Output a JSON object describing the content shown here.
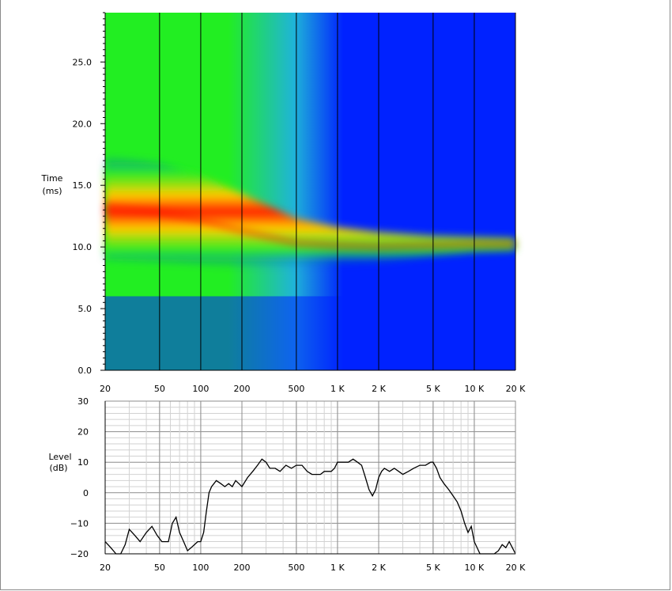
{
  "chart_data": [
    {
      "type": "heatmap",
      "title": "",
      "ylabel_line1": "Time",
      "ylabel_line2": "(ms)",
      "x_scale": "log",
      "x_ticks": [
        {
          "v": 20,
          "label": "20"
        },
        {
          "v": 50,
          "label": "50"
        },
        {
          "v": 100,
          "label": "100"
        },
        {
          "v": 200,
          "label": "200"
        },
        {
          "v": 500,
          "label": "500"
        },
        {
          "v": 1000,
          "label": "1 K"
        },
        {
          "v": 2000,
          "label": "2 K"
        },
        {
          "v": 5000,
          "label": "5 K"
        },
        {
          "v": 10000,
          "label": "10 K"
        },
        {
          "v": 20000,
          "label": "20 K"
        }
      ],
      "y_ticks": [
        {
          "v": 0,
          "label": "0.0"
        },
        {
          "v": 5,
          "label": "5.0"
        },
        {
          "v": 10,
          "label": "10.0"
        },
        {
          "v": 15,
          "label": "15.0"
        },
        {
          "v": 20,
          "label": "20.0"
        },
        {
          "v": 25,
          "label": "25.0"
        }
      ],
      "xlim": [
        20,
        20000
      ],
      "ylim": [
        0,
        29
      ],
      "energy_peak_ridge": {
        "x": [
          20,
          50,
          100,
          200,
          500,
          1000,
          2000,
          5000,
          10000,
          20000
        ],
        "y": [
          13.2,
          12.8,
          12.2,
          11.3,
          10.3,
          10.1,
          10.0,
          10.1,
          10.2,
          10.2
        ]
      },
      "colors": {
        "high": "#ff1400",
        "mid": "#22ee22",
        "low": "#0022ff"
      }
    },
    {
      "type": "line",
      "title": "",
      "ylabel_line1": "Level",
      "ylabel_line2": "(dB)",
      "x_scale": "log",
      "x_ticks": [
        {
          "v": 20,
          "label": "20"
        },
        {
          "v": 50,
          "label": "50"
        },
        {
          "v": 100,
          "label": "100"
        },
        {
          "v": 200,
          "label": "200"
        },
        {
          "v": 500,
          "label": "500"
        },
        {
          "v": 1000,
          "label": "1 K"
        },
        {
          "v": 2000,
          "label": "2 K"
        },
        {
          "v": 5000,
          "label": "5 K"
        },
        {
          "v": 10000,
          "label": "10 K"
        },
        {
          "v": 20000,
          "label": "20 K"
        }
      ],
      "y_ticks": [
        {
          "v": 30,
          "label": "30"
        },
        {
          "v": 20,
          "label": "20"
        },
        {
          "v": 10,
          "label": "10"
        },
        {
          "v": 0,
          "label": "0"
        },
        {
          "v": -10,
          "label": "−10"
        },
        {
          "v": -20,
          "label": "−20"
        }
      ],
      "xlim": [
        20,
        20000
      ],
      "ylim": [
        -20,
        30
      ],
      "series": [
        {
          "color": "#000000",
          "x": [
            20,
            22,
            24,
            26,
            28,
            30,
            33,
            36,
            40,
            44,
            48,
            52,
            55,
            58,
            62,
            66,
            70,
            75,
            80,
            85,
            90,
            95,
            100,
            105,
            110,
            115,
            120,
            125,
            130,
            140,
            150,
            160,
            170,
            180,
            190,
            200,
            220,
            240,
            260,
            280,
            300,
            320,
            350,
            380,
            420,
            460,
            500,
            550,
            600,
            650,
            700,
            750,
            800,
            850,
            900,
            950,
            1000,
            1100,
            1200,
            1300,
            1400,
            1500,
            1600,
            1700,
            1800,
            1900,
            2000,
            2100,
            2200,
            2400,
            2600,
            2800,
            3000,
            3300,
            3600,
            4000,
            4400,
            4800,
            5000,
            5300,
            5600,
            6000,
            6500,
            7000,
            7500,
            8000,
            8500,
            9000,
            9500,
            10000,
            11000,
            12000,
            13000,
            14000,
            15000,
            16000,
            17000,
            18000,
            19000,
            20000
          ],
          "y": [
            -16,
            -18,
            -20,
            -20,
            -17,
            -12,
            -14,
            -16,
            -13,
            -11,
            -14,
            -16,
            -16,
            -16,
            -10,
            -8,
            -13,
            -16,
            -19,
            -18,
            -17,
            -16,
            -16,
            -13,
            -6,
            0,
            2,
            3,
            4,
            3,
            2,
            3,
            2,
            4,
            3,
            2,
            5,
            7,
            9,
            11,
            10,
            8,
            8,
            7,
            9,
            8,
            9,
            9,
            7,
            6,
            6,
            6,
            7,
            7,
            7,
            8,
            10,
            10,
            10,
            11,
            10,
            9,
            5,
            1,
            -1,
            1,
            5,
            7,
            8,
            7,
            8,
            7,
            6,
            7,
            8,
            9,
            9,
            10,
            10,
            8,
            5,
            3,
            1,
            -1,
            -3,
            -6,
            -10,
            -13,
            -11,
            -16,
            -20,
            -20,
            -20,
            -20,
            -19,
            -17,
            -18,
            -16,
            -18,
            -20
          ]
        }
      ]
    }
  ]
}
